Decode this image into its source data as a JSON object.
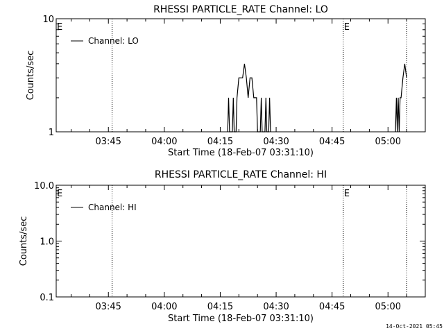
{
  "footer": "14-Oct-2021 05:45",
  "chart_data": [
    {
      "type": "line",
      "title": "RHESSI PARTICLE_RATE Channel: LO",
      "xlabel": "Start Time (18-Feb-07 03:31:10)",
      "ylabel": "Counts/sec",
      "yscale": "log",
      "ylim": [
        1,
        10
      ],
      "ytick_values": [
        1,
        10
      ],
      "ytick_labels": [
        "1",
        "10"
      ],
      "xlim": [
        "03:31",
        "05:10"
      ],
      "xtick_values": [
        "03:45",
        "04:00",
        "04:15",
        "04:30",
        "04:45",
        "05:00"
      ],
      "xtick_labels": [
        "03:45",
        "04:00",
        "04:15",
        "04:30",
        "04:45",
        "05:00"
      ],
      "legend": {
        "label": "Channel: LO",
        "placement": "top-left"
      },
      "event_lines": [
        {
          "time": "03:31",
          "label": "E"
        },
        {
          "time": "03:46",
          "label": ""
        },
        {
          "time": "04:48",
          "label": "E"
        },
        {
          "time": "05:05",
          "label": ""
        }
      ],
      "series": [
        {
          "name": "Channel: LO",
          "points": [
            [
              "04:17:00",
              1
            ],
            [
              "04:17:15",
              2
            ],
            [
              "04:17:30",
              1
            ],
            [
              "04:18:15",
              1
            ],
            [
              "04:18:30",
              2
            ],
            [
              "04:18:45",
              1
            ],
            [
              "04:19:15",
              1
            ],
            [
              "04:19:30",
              2
            ],
            [
              "04:20:00",
              3
            ],
            [
              "04:21:00",
              3
            ],
            [
              "04:21:30",
              4
            ],
            [
              "04:22:00",
              3
            ],
            [
              "04:22:30",
              2
            ],
            [
              "04:23:00",
              3
            ],
            [
              "04:23:30",
              3
            ],
            [
              "04:24:00",
              2
            ],
            [
              "04:24:45",
              2
            ],
            [
              "04:25:00",
              1
            ],
            [
              "04:25:45",
              1
            ],
            [
              "04:26:00",
              2
            ],
            [
              "04:26:15",
              1
            ],
            [
              "04:27:00",
              1
            ],
            [
              "04:27:15",
              2
            ],
            [
              "04:27:30",
              1
            ],
            [
              "04:28:00",
              1
            ],
            [
              "04:28:15",
              2
            ],
            [
              "04:28:30",
              1
            ]
          ]
        },
        {
          "name": "Channel: LO",
          "points": [
            [
              "05:02:00",
              1
            ],
            [
              "05:02:15",
              2
            ],
            [
              "05:02:30",
              1
            ],
            [
              "05:02:45",
              2
            ],
            [
              "05:03:00",
              1
            ],
            [
              "05:03:15",
              2
            ],
            [
              "05:03:30",
              2
            ],
            [
              "05:04:00",
              3
            ],
            [
              "05:04:30",
              4
            ],
            [
              "05:05:00",
              3
            ]
          ]
        }
      ]
    },
    {
      "type": "line",
      "title": "RHESSI PARTICLE_RATE Channel: HI",
      "xlabel": "Start Time (18-Feb-07 03:31:10)",
      "ylabel": "Counts/sec",
      "yscale": "log",
      "ylim": [
        0.1,
        10
      ],
      "ytick_values": [
        0.1,
        1,
        10
      ],
      "ytick_labels": [
        "0.1",
        "1.0",
        "10.0"
      ],
      "xlim": [
        "03:31",
        "05:10"
      ],
      "xtick_values": [
        "03:45",
        "04:00",
        "04:15",
        "04:30",
        "04:45",
        "05:00"
      ],
      "xtick_labels": [
        "03:45",
        "04:00",
        "04:15",
        "04:30",
        "04:45",
        "05:00"
      ],
      "legend": {
        "label": "Channel: HI",
        "placement": "top-left"
      },
      "event_lines": [
        {
          "time": "03:31",
          "label": "E"
        },
        {
          "time": "03:46",
          "label": ""
        },
        {
          "time": "04:48",
          "label": "E"
        },
        {
          "time": "05:05",
          "label": ""
        }
      ],
      "series": [
        {
          "name": "Channel: HI",
          "points": []
        }
      ]
    }
  ]
}
